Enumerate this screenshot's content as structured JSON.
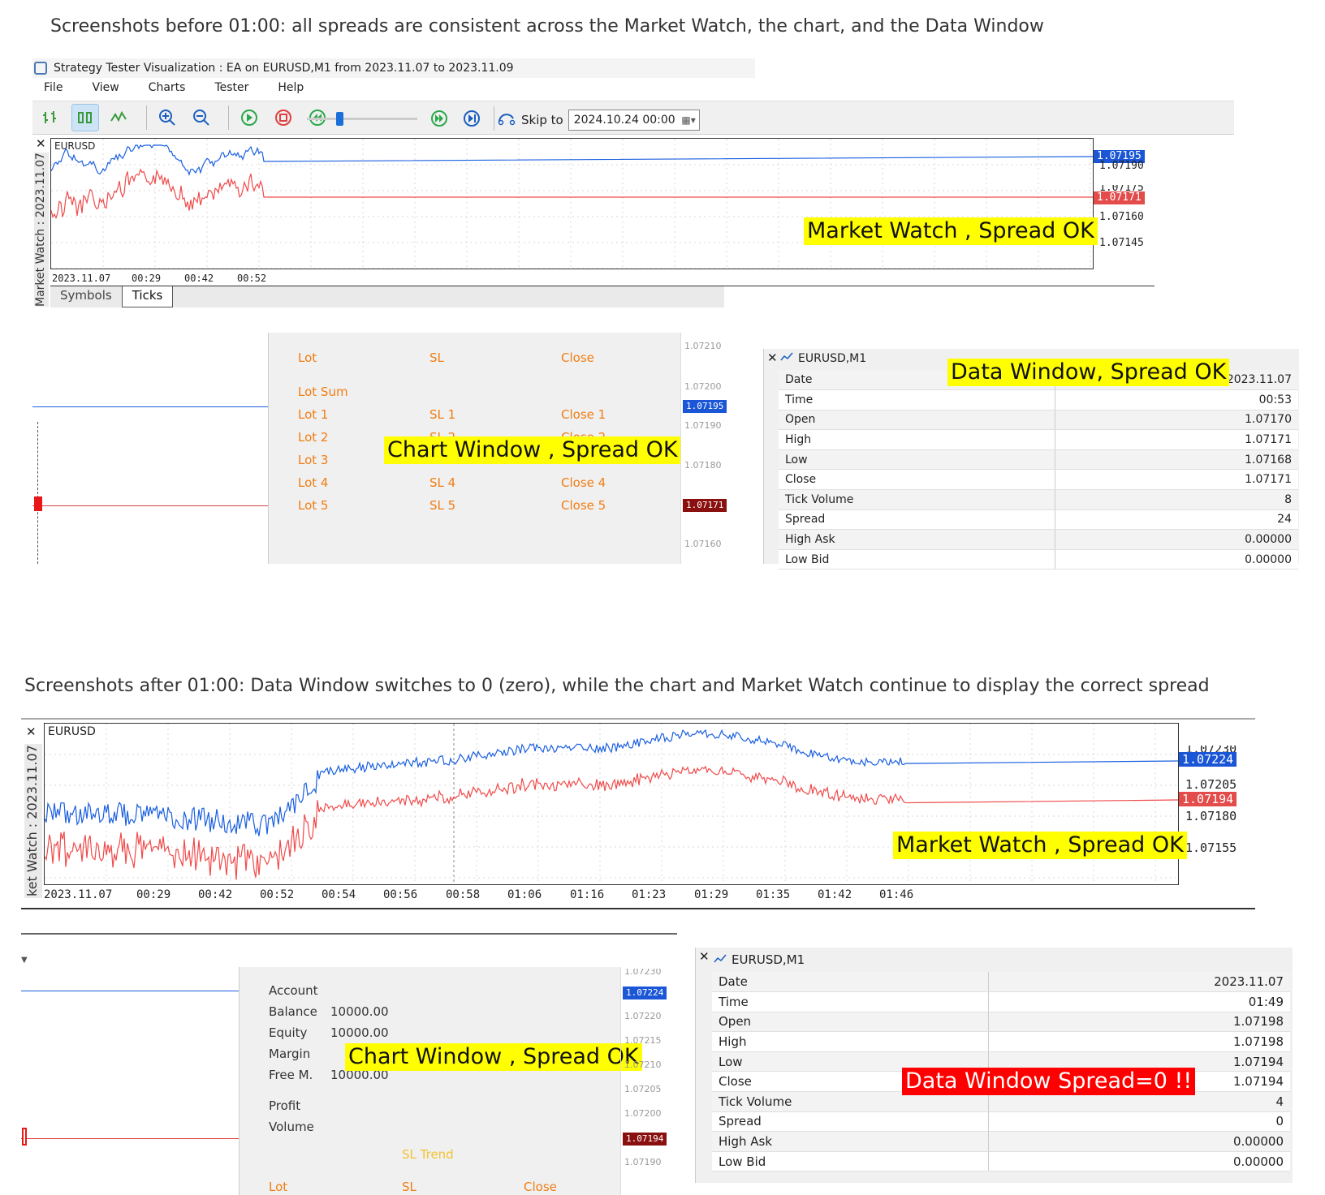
{
  "headings": {
    "before": "Screenshots before 01:00:  all spreads are consistent across the Market Watch, the chart, and the Data Window",
    "after": "Screenshots after 01:00:  Data Window switches to 0 (zero), while the chart and Market Watch continue to display the correct spread"
  },
  "window": {
    "title": "Strategy Tester Visualization : EA on EURUSD,M1 from 2023.11.07 to 2023.11.09",
    "menu": [
      "File",
      "View",
      "Charts",
      "Tester",
      "Help"
    ],
    "skip_label": "Skip to",
    "skip_date": "2024.10.24 00:00"
  },
  "mw1": {
    "symbol": "EURUSD",
    "side_label": "Market Watch : 2023.11.07",
    "ask_tag": "1.07195",
    "bid_tag": "1.07171",
    "price_labels": [
      "1.07190",
      "1.07175",
      "1.07160",
      "1.07145"
    ],
    "time_labels": [
      "2023.11.07",
      "00:29",
      "00:42",
      "00:52"
    ],
    "tabs": [
      "Symbols",
      "Ticks"
    ],
    "callout": "Market Watch , Spread OK"
  },
  "cw1": {
    "panel_cols": [
      [
        "Lot",
        "Lot Sum",
        "Lot 1",
        "Lot 2",
        "Lot 3",
        "Lot 4",
        "Lot 5"
      ],
      [
        "SL",
        "SL 1",
        "SL 2",
        "SL 3",
        "SL 4",
        "SL 5"
      ],
      [
        "Close",
        "Close 1",
        "Close 2",
        "Close 3",
        "Close 4",
        "Close 5"
      ]
    ],
    "scale": [
      "1.07210",
      "1.07200",
      "1.07190",
      "1.07180",
      "1.07160"
    ],
    "ask_tag": "1.07195",
    "bid_tag": "1.07171",
    "callout": "Chart Window , Spread OK"
  },
  "dw1": {
    "title": "EURUSD,M1",
    "callout": "Data Window, Spread OK",
    "rows": [
      [
        "Date",
        "2023.11.07"
      ],
      [
        "Time",
        "00:53"
      ],
      [
        "Open",
        "1.07170"
      ],
      [
        "High",
        "1.07171"
      ],
      [
        "Low",
        "1.07168"
      ],
      [
        "Close",
        "1.07171"
      ],
      [
        "Tick Volume",
        "8"
      ],
      [
        "Spread",
        "24"
      ],
      [
        "High Ask",
        "0.00000"
      ],
      [
        "Low Bid",
        "0.00000"
      ]
    ]
  },
  "mw2": {
    "symbol": "EURUSD",
    "side_label": "ket Watch : 2023.11.07",
    "ask_tag": "1.07224",
    "bid_tag": "1.07194",
    "price_labels": [
      "1.07230",
      "1.07205",
      "1.07180",
      "1.07155"
    ],
    "time_labels": [
      "2023.11.07",
      "00:29",
      "00:42",
      "00:52",
      "00:54",
      "00:56",
      "00:58",
      "01:06",
      "01:16",
      "01:23",
      "01:29",
      "01:35",
      "01:42",
      "01:46"
    ],
    "callout": "Market Watch , Spread OK"
  },
  "cw2": {
    "account_labels": [
      "Account",
      "Balance",
      "Equity",
      "Margin",
      "Free M.",
      "Profit",
      "Volume"
    ],
    "account_values": [
      "",
      "10000.00",
      "10000.00",
      "",
      "10000.00",
      "",
      ""
    ],
    "sl_trend": "SL Trend",
    "bottom_cols": [
      "Lot",
      "SL",
      "Close"
    ],
    "scale": [
      "1.07230",
      "1.07220",
      "1.07215",
      "1.07210",
      "1.07205",
      "1.07200",
      "1.07190"
    ],
    "ask_tag": "1.07224",
    "bid_tag": "1.07194",
    "callout": "Chart Window , Spread OK"
  },
  "dw2": {
    "title": "EURUSD,M1",
    "callout": "Data Window Spread=0 !!",
    "rows": [
      [
        "Date",
        "2023.11.07"
      ],
      [
        "Time",
        "01:49"
      ],
      [
        "Open",
        "1.07198"
      ],
      [
        "High",
        "1.07198"
      ],
      [
        "Low",
        "1.07194"
      ],
      [
        "Close",
        "1.07194"
      ],
      [
        "Tick Volume",
        "4"
      ],
      [
        "Spread",
        "0"
      ],
      [
        "High Ask",
        "0.00000"
      ],
      [
        "Low Bid",
        "0.00000"
      ]
    ]
  },
  "colors": {
    "ask": "#1a5fe0",
    "bid": "#f04a4a",
    "ask_tag": "#1a56d6",
    "bid_tag": "#e44b4b",
    "callout": "#ffff00",
    "alert": "#ff0000"
  }
}
